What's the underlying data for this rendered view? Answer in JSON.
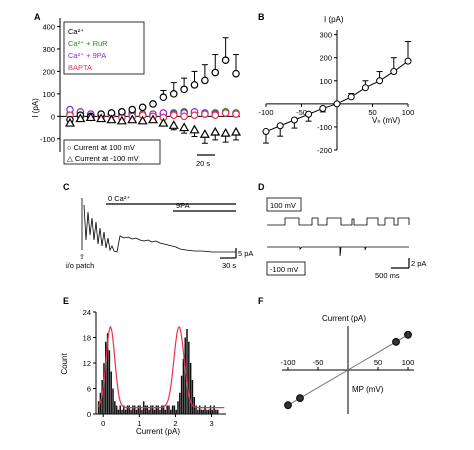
{
  "panels": {
    "A": {
      "letter": "A",
      "ylabel": "I (pA)",
      "legend_conditions": [
        {
          "label": "Ca²⁺",
          "color": "#000000"
        },
        {
          "label": "Ca²⁺ + RuR",
          "color": "#1f8a1f"
        },
        {
          "label": "Ca²⁺ + 9PA",
          "color": "#8a2be2"
        },
        {
          "label": "BAPTA",
          "color": "#e8344f"
        }
      ],
      "legend_symbols": [
        "○ Current at 100 mV",
        "△ Current at -100 mV"
      ],
      "scalebar": "20 s"
    },
    "B": {
      "letter": "B",
      "ylabel": "I (pA)",
      "xlabel": "Vₕ (mV)"
    },
    "C": {
      "letter": "C",
      "label_zero_ca": "0 Ca²⁺",
      "label_9pa": "9PA",
      "label_patch": "i/o patch",
      "scale_y": "5 pA",
      "scale_x": "30 s"
    },
    "D": {
      "letter": "D",
      "label_100mv": "100 mV",
      "label_m100mv": "-100 mV",
      "scale_y": "2 pA",
      "scale_x": "500 ms"
    },
    "E": {
      "letter": "E",
      "ylabel": "Count",
      "xlabel": "Current (pA)"
    },
    "F": {
      "letter": "F",
      "ylabel": "Current (pA)",
      "xlabel": "MP (mV)"
    }
  },
  "chart_data": [
    {
      "panel": "A",
      "type": "scatter",
      "ylim": [
        -150,
        420
      ],
      "yticks": [
        -100,
        0,
        100,
        200,
        300,
        400
      ],
      "series": [
        {
          "name": "Current at 100 mV",
          "color": "#000000",
          "marker": "circle",
          "y": [
            -15,
            5,
            0,
            10,
            15,
            20,
            30,
            40,
            55,
            85,
            100,
            120,
            140,
            160,
            195,
            250,
            190
          ],
          "err": [
            0,
            0,
            0,
            0,
            0,
            0,
            0,
            0,
            0,
            30,
            50,
            50,
            60,
            70,
            80,
            100,
            85
          ]
        },
        {
          "name": "Current at -100 mV",
          "color": "#000000",
          "marker": "triangle",
          "y": [
            -30,
            -10,
            -5,
            -10,
            -15,
            -20,
            -15,
            -20,
            -15,
            -30,
            -40,
            -50,
            -60,
            -80,
            -70,
            -75,
            -70
          ],
          "err": [
            0,
            0,
            0,
            0,
            0,
            0,
            0,
            0,
            0,
            10,
            20,
            25,
            30,
            40,
            35,
            40,
            35
          ]
        },
        {
          "name": "Ca²⁺ + RuR",
          "color": "#1f8a1f",
          "marker": "circle",
          "y": [
            10,
            15,
            5,
            0,
            10,
            5,
            15,
            10,
            5,
            10,
            15,
            20,
            15,
            10,
            15,
            20,
            15
          ]
        },
        {
          "name": "Ca²⁺ + 9PA",
          "color": "#8a2be2",
          "marker": "circle",
          "y": [
            30,
            20,
            10,
            5,
            10,
            15,
            10,
            5,
            10,
            15,
            10,
            15,
            20,
            15,
            10,
            15,
            10
          ]
        },
        {
          "name": "BAPTA",
          "color": "#e8344f",
          "marker": "circle",
          "y": [
            5,
            0,
            -5,
            0,
            5,
            -5,
            0,
            5,
            0,
            -5,
            5,
            0,
            5,
            10,
            5,
            15,
            10
          ]
        }
      ]
    },
    {
      "panel": "B",
      "type": "line",
      "xlim": [
        -100,
        100
      ],
      "ylim": [
        -200,
        320
      ],
      "xticks": [
        -100,
        -50,
        50,
        100
      ],
      "yticks": [
        -200,
        -100,
        100,
        200,
        300
      ],
      "x": [
        -100,
        -80,
        -60,
        -40,
        -20,
        0,
        20,
        40,
        60,
        80,
        100
      ],
      "y": [
        -120,
        -95,
        -70,
        -45,
        -20,
        0,
        30,
        70,
        100,
        140,
        185
      ],
      "err": [
        50,
        45,
        35,
        30,
        15,
        5,
        15,
        30,
        40,
        60,
        85
      ]
    },
    {
      "panel": "E",
      "type": "bar",
      "xlim": [
        -0.2,
        3.4
      ],
      "ylim": [
        0,
        24
      ],
      "xticks": [
        0,
        1,
        2,
        3
      ],
      "yticks": [
        0,
        6,
        12,
        18,
        24
      ],
      "bin_width": 0.05,
      "bin_start": -0.15,
      "counts": [
        3,
        5,
        8,
        12,
        17,
        19,
        15,
        10,
        6,
        3,
        2,
        1,
        2,
        1,
        2,
        1,
        2,
        2,
        1,
        2,
        2,
        1,
        2,
        2,
        1,
        3,
        2,
        2,
        1,
        2,
        2,
        1,
        2,
        2,
        1,
        2,
        2,
        1,
        2,
        2,
        1,
        2,
        2,
        1,
        3,
        5,
        9,
        13,
        18,
        20,
        17,
        12,
        8,
        4,
        2,
        1,
        2,
        1,
        1,
        2,
        1,
        1,
        2,
        1,
        2,
        1,
        1
      ],
      "fit_peaks": [
        {
          "mu": 0.2,
          "sigma": 0.12,
          "amp": 19
        },
        {
          "mu": 2.1,
          "sigma": 0.14,
          "amp": 19
        }
      ],
      "fit_baseline": 1.5
    },
    {
      "panel": "F",
      "type": "scatter",
      "xlim": [
        -110,
        110
      ],
      "ylim": [
        -2.5,
        2.5
      ],
      "xticks": [
        -100,
        -50,
        50,
        100
      ],
      "x": [
        -100,
        -80,
        80,
        100
      ],
      "y": [
        -2.0,
        -1.6,
        1.6,
        2.0
      ]
    }
  ]
}
